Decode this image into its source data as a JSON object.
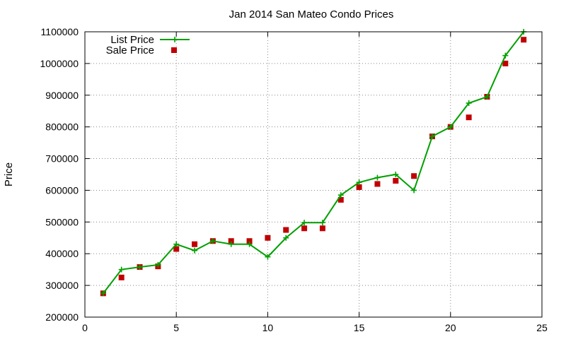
{
  "chart_data": {
    "type": "line",
    "title": "Jan 2014 San Mateo Condo Prices",
    "xlabel": "",
    "ylabel": "Price",
    "xlim": [
      0,
      25
    ],
    "ylim": [
      200000,
      1100000
    ],
    "xticks": [
      0,
      5,
      10,
      15,
      20,
      25
    ],
    "yticks": [
      200000,
      300000,
      400000,
      500000,
      600000,
      700000,
      800000,
      900000,
      1000000,
      1100000
    ],
    "grid": true,
    "legend_position": "top-left",
    "x": [
      1,
      2,
      3,
      4,
      5,
      6,
      7,
      8,
      9,
      10,
      11,
      12,
      13,
      14,
      15,
      16,
      17,
      18,
      19,
      20,
      21,
      22,
      23,
      24
    ],
    "series": [
      {
        "name": "List Price",
        "style": "line-plus",
        "color": "#00a000",
        "values": [
          275000,
          350000,
          358000,
          365000,
          430000,
          410000,
          440000,
          430000,
          430000,
          390000,
          450000,
          498000,
          498000,
          585000,
          625000,
          640000,
          650000,
          600000,
          770000,
          800000,
          875000,
          895000,
          1025000,
          1100000
        ]
      },
      {
        "name": "Sale Price",
        "style": "square",
        "color": "#c00000",
        "values": [
          275000,
          325000,
          358000,
          360000,
          415000,
          430000,
          440000,
          440000,
          440000,
          450000,
          475000,
          480000,
          480000,
          570000,
          610000,
          620000,
          630000,
          645000,
          770000,
          800000,
          830000,
          895000,
          1000000,
          1075000
        ]
      }
    ]
  }
}
